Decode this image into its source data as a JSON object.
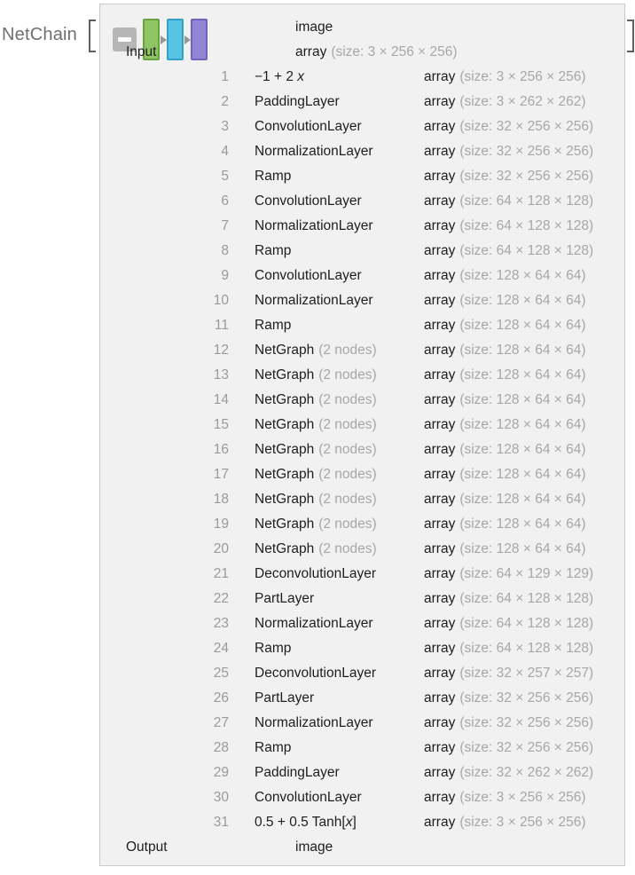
{
  "expression": {
    "function_name": "NetChain",
    "open_bracket": "[",
    "close_bracket": "]"
  },
  "panel": {
    "icon": {
      "collapse_button_glyph": "minus",
      "layer_colors": [
        {
          "name": "green-layer",
          "fill": "#8fc564",
          "border": "#69a23e"
        },
        {
          "name": "cyan-layer",
          "fill": "#58c4e4",
          "border": "#35a0c6"
        },
        {
          "name": "purple-layer",
          "fill": "#9384d5",
          "border": "#7163b7"
        }
      ],
      "arrow_color": "#969696"
    },
    "colors": {
      "panel_background": "#f1f1f1",
      "panel_border": "#c9c9c9",
      "number_text": "#9a9a9a",
      "primary_text": "#1e1e1e",
      "secondary_text": "#a7a7a7",
      "label_text": "#6f6f6f"
    },
    "table": {
      "rows": [
        {
          "num": "",
          "name": "",
          "name_it": "",
          "name_end": "",
          "note": "",
          "type": "image",
          "detail": ""
        },
        {
          "num": "",
          "name": "Input",
          "name_it": "",
          "name_end": "",
          "note": "",
          "type": "array",
          "detail": "(size: 3 × 256 × 256)"
        },
        {
          "num": "1",
          "name": "−1 + 2 ",
          "name_it": "x",
          "name_end": "",
          "note": "",
          "type": "array",
          "detail": "(size: 3 × 256 × 256)"
        },
        {
          "num": "2",
          "name": "PaddingLayer",
          "name_it": "",
          "name_end": "",
          "note": "",
          "type": "array",
          "detail": "(size: 3 × 262 × 262)"
        },
        {
          "num": "3",
          "name": "ConvolutionLayer",
          "name_it": "",
          "name_end": "",
          "note": "",
          "type": "array",
          "detail": "(size: 32 × 256 × 256)"
        },
        {
          "num": "4",
          "name": "NormalizationLayer",
          "name_it": "",
          "name_end": "",
          "note": "",
          "type": "array",
          "detail": "(size: 32 × 256 × 256)"
        },
        {
          "num": "5",
          "name": "Ramp",
          "name_it": "",
          "name_end": "",
          "note": "",
          "type": "array",
          "detail": "(size: 32 × 256 × 256)"
        },
        {
          "num": "6",
          "name": "ConvolutionLayer",
          "name_it": "",
          "name_end": "",
          "note": "",
          "type": "array",
          "detail": "(size: 64 × 128 × 128)"
        },
        {
          "num": "7",
          "name": "NormalizationLayer",
          "name_it": "",
          "name_end": "",
          "note": "",
          "type": "array",
          "detail": "(size: 64 × 128 × 128)"
        },
        {
          "num": "8",
          "name": "Ramp",
          "name_it": "",
          "name_end": "",
          "note": "",
          "type": "array",
          "detail": "(size: 64 × 128 × 128)"
        },
        {
          "num": "9",
          "name": "ConvolutionLayer",
          "name_it": "",
          "name_end": "",
          "note": "",
          "type": "array",
          "detail": "(size: 128 × 64 × 64)"
        },
        {
          "num": "10",
          "name": "NormalizationLayer",
          "name_it": "",
          "name_end": "",
          "note": "",
          "type": "array",
          "detail": "(size: 128 × 64 × 64)"
        },
        {
          "num": "11",
          "name": "Ramp",
          "name_it": "",
          "name_end": "",
          "note": "",
          "type": "array",
          "detail": "(size: 128 × 64 × 64)"
        },
        {
          "num": "12",
          "name": "NetGraph",
          "name_it": "",
          "name_end": "",
          "note": "(2 nodes)",
          "type": "array",
          "detail": "(size: 128 × 64 × 64)"
        },
        {
          "num": "13",
          "name": "NetGraph",
          "name_it": "",
          "name_end": "",
          "note": "(2 nodes)",
          "type": "array",
          "detail": "(size: 128 × 64 × 64)"
        },
        {
          "num": "14",
          "name": "NetGraph",
          "name_it": "",
          "name_end": "",
          "note": "(2 nodes)",
          "type": "array",
          "detail": "(size: 128 × 64 × 64)"
        },
        {
          "num": "15",
          "name": "NetGraph",
          "name_it": "",
          "name_end": "",
          "note": "(2 nodes)",
          "type": "array",
          "detail": "(size: 128 × 64 × 64)"
        },
        {
          "num": "16",
          "name": "NetGraph",
          "name_it": "",
          "name_end": "",
          "note": "(2 nodes)",
          "type": "array",
          "detail": "(size: 128 × 64 × 64)"
        },
        {
          "num": "17",
          "name": "NetGraph",
          "name_it": "",
          "name_end": "",
          "note": "(2 nodes)",
          "type": "array",
          "detail": "(size: 128 × 64 × 64)"
        },
        {
          "num": "18",
          "name": "NetGraph",
          "name_it": "",
          "name_end": "",
          "note": "(2 nodes)",
          "type": "array",
          "detail": "(size: 128 × 64 × 64)"
        },
        {
          "num": "19",
          "name": "NetGraph",
          "name_it": "",
          "name_end": "",
          "note": "(2 nodes)",
          "type": "array",
          "detail": "(size: 128 × 64 × 64)"
        },
        {
          "num": "20",
          "name": "NetGraph",
          "name_it": "",
          "name_end": "",
          "note": "(2 nodes)",
          "type": "array",
          "detail": "(size: 128 × 64 × 64)"
        },
        {
          "num": "21",
          "name": "DeconvolutionLayer",
          "name_it": "",
          "name_end": "",
          "note": "",
          "type": "array",
          "detail": "(size: 64 × 129 × 129)"
        },
        {
          "num": "22",
          "name": "PartLayer",
          "name_it": "",
          "name_end": "",
          "note": "",
          "type": "array",
          "detail": "(size: 64 × 128 × 128)"
        },
        {
          "num": "23",
          "name": "NormalizationLayer",
          "name_it": "",
          "name_end": "",
          "note": "",
          "type": "array",
          "detail": "(size: 64 × 128 × 128)"
        },
        {
          "num": "24",
          "name": "Ramp",
          "name_it": "",
          "name_end": "",
          "note": "",
          "type": "array",
          "detail": "(size: 64 × 128 × 128)"
        },
        {
          "num": "25",
          "name": "DeconvolutionLayer",
          "name_it": "",
          "name_end": "",
          "note": "",
          "type": "array",
          "detail": "(size: 32 × 257 × 257)"
        },
        {
          "num": "26",
          "name": "PartLayer",
          "name_it": "",
          "name_end": "",
          "note": "",
          "type": "array",
          "detail": "(size: 32 × 256 × 256)"
        },
        {
          "num": "27",
          "name": "NormalizationLayer",
          "name_it": "",
          "name_end": "",
          "note": "",
          "type": "array",
          "detail": "(size: 32 × 256 × 256)"
        },
        {
          "num": "28",
          "name": "Ramp",
          "name_it": "",
          "name_end": "",
          "note": "",
          "type": "array",
          "detail": "(size: 32 × 256 × 256)"
        },
        {
          "num": "29",
          "name": "PaddingLayer",
          "name_it": "",
          "name_end": "",
          "note": "",
          "type": "array",
          "detail": "(size: 32 × 262 × 262)"
        },
        {
          "num": "30",
          "name": "ConvolutionLayer",
          "name_it": "",
          "name_end": "",
          "note": "",
          "type": "array",
          "detail": "(size: 3 × 256 × 256)"
        },
        {
          "num": "31",
          "name": "0.5 + 0.5 Tanh[",
          "name_it": "x",
          "name_end": "]",
          "note": "",
          "type": "array",
          "detail": "(size: 3 × 256 × 256)"
        },
        {
          "num": "",
          "name": "Output",
          "name_it": "",
          "name_end": "",
          "note": "",
          "type": "image",
          "detail": ""
        }
      ]
    }
  }
}
